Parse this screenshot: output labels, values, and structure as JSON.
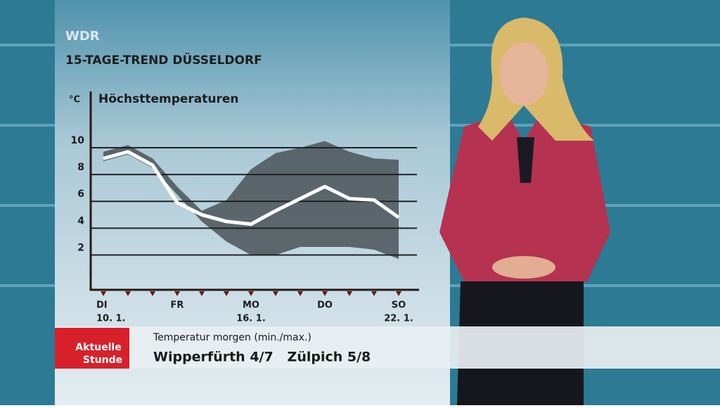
{
  "header": {
    "channel": "WDR",
    "title": "15-TAGE-TREND DÜSSELDORF"
  },
  "chart_data": {
    "type": "line",
    "title": "Höchsttemperaturen",
    "y_label": "°C",
    "categories": [
      "DI",
      null,
      null,
      "FR",
      null,
      null,
      "MO",
      null,
      null,
      "DO",
      null,
      null,
      "SO"
    ],
    "dates": [
      "10. 1.",
      null,
      null,
      null,
      null,
      null,
      "16. 1.",
      null,
      null,
      null,
      null,
      null,
      "22. 1."
    ],
    "values": [
      9.2,
      9.7,
      8.7,
      5.9,
      5.0,
      4.5,
      4.3,
      5.3,
      6.2,
      7.1,
      6.2,
      6.1,
      4.8
    ],
    "color": "#ffffff",
    "band": {
      "color": "#4a5458",
      "upper": [
        9.7,
        10.2,
        9.2,
        7.1,
        5.3,
        6.1,
        8.4,
        9.6,
        10.0,
        10.5,
        9.7,
        9.2,
        9.1
      ],
      "lower": [
        9.0,
        9.5,
        8.5,
        6.5,
        4.5,
        3.0,
        2.0,
        2.0,
        2.6,
        2.6,
        2.6,
        2.4,
        1.7
      ]
    },
    "ylim": [
      -0.6,
      14.2
    ],
    "yticks": [
      2,
      4,
      6,
      8,
      10
    ],
    "grid": true
  },
  "ticker": {
    "logo": [
      "Aktuelle",
      "Stunde"
    ],
    "heading": "Temperatur morgen (min./max.)",
    "text": "Wipperfürth 4/7   Zülpich 5/8"
  }
}
